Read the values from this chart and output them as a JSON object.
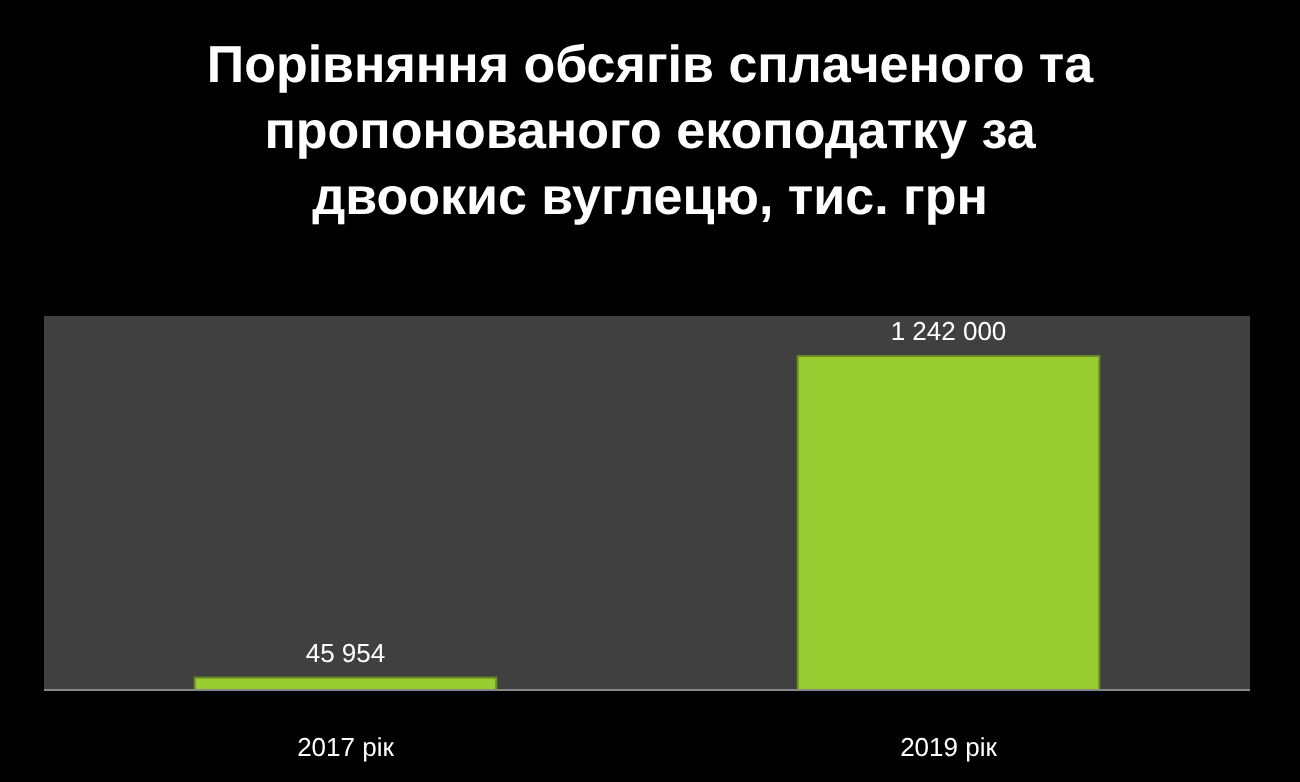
{
  "chart_data": {
    "type": "bar",
    "title": "Порівняння обсягів сплаченого та пропонованого екоподатку за двоокис вуглецю, тис. грн",
    "categories": [
      "2017 рік",
      "2019 рік"
    ],
    "values": [
      45954,
      1242000
    ],
    "color": "#9acd32",
    "data_labels": true,
    "value_labels": [
      "45 954",
      "1 242 000"
    ]
  }
}
